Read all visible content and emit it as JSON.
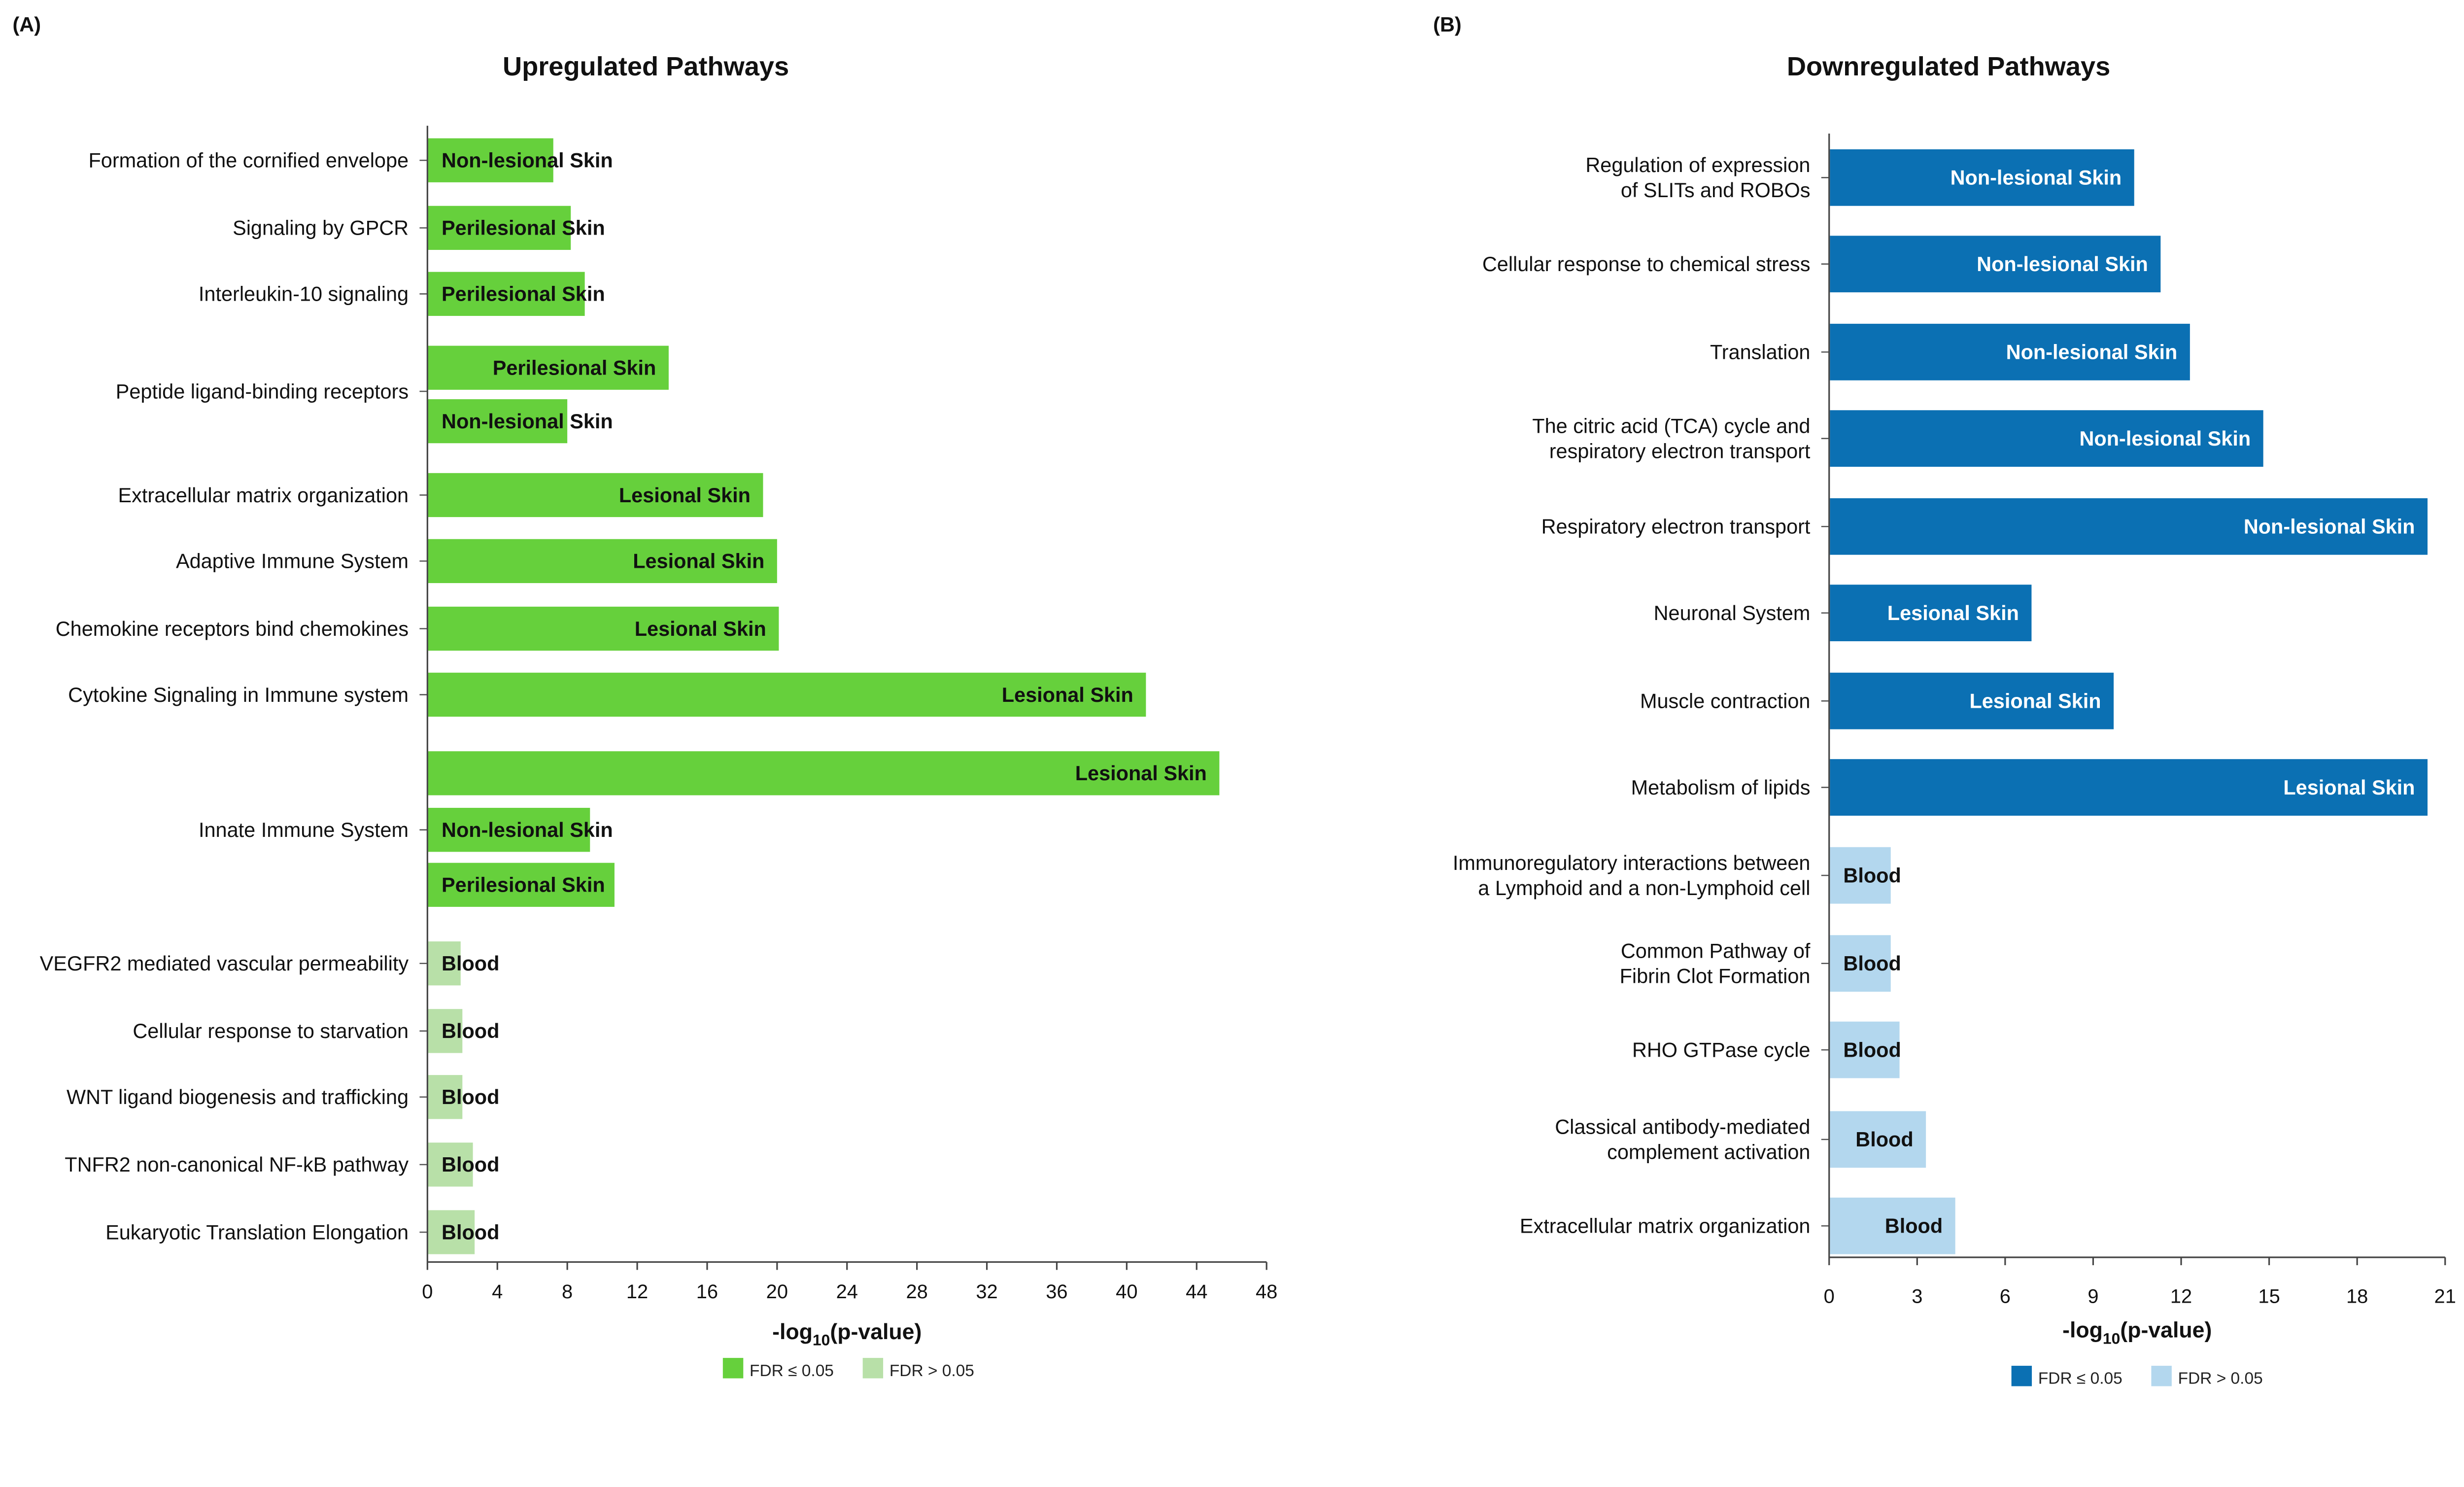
{
  "chart_data": [
    {
      "type": "bar",
      "orientation": "horizontal",
      "panel": "(A)",
      "title": "Upregulated Pathways",
      "xlabel": {
        "main": "-log",
        "sub": "10",
        "rest": "(p-value)"
      },
      "xlim": [
        0,
        48
      ],
      "xticks": [
        0,
        4,
        8,
        12,
        16,
        20,
        24,
        28,
        32,
        36,
        40,
        44,
        48
      ],
      "colors": {
        "significant": "#66d03c",
        "nonsignificant": "#b8e0a8"
      },
      "legend": [
        {
          "label": "FDR ≤ 0.05",
          "key": "significant"
        },
        {
          "label": "FDR > 0.05",
          "key": "nonsignificant"
        }
      ],
      "legend_position": "bottom",
      "groups": [
        {
          "pathway": "Formation of the cornified envelope",
          "bars": [
            {
              "tissue": "Non-lesional Skin",
              "value": 7.2,
              "significant": true
            }
          ]
        },
        {
          "pathway": "Signaling by GPCR",
          "bars": [
            {
              "tissue": "Perilesional Skin",
              "value": 8.2,
              "significant": true
            }
          ]
        },
        {
          "pathway": "Interleukin-10 signaling",
          "bars": [
            {
              "tissue": "Perilesional Skin",
              "value": 9.0,
              "significant": true
            }
          ]
        },
        {
          "pathway": "Peptide ligand-binding receptors",
          "bars": [
            {
              "tissue": "Perilesional Skin",
              "value": 13.8,
              "significant": true
            },
            {
              "tissue": "Non-lesional Skin",
              "value": 8.0,
              "significant": true
            }
          ]
        },
        {
          "pathway": "Extracellular matrix organization",
          "bars": [
            {
              "tissue": "Lesional Skin",
              "value": 19.2,
              "significant": true
            }
          ]
        },
        {
          "pathway": "Adaptive Immune System",
          "bars": [
            {
              "tissue": "Lesional Skin",
              "value": 20.0,
              "significant": true
            }
          ]
        },
        {
          "pathway": "Chemokine receptors bind chemokines",
          "bars": [
            {
              "tissue": "Lesional Skin",
              "value": 20.1,
              "significant": true
            }
          ]
        },
        {
          "pathway": "Cytokine Signaling in Immune system",
          "bars": [
            {
              "tissue": "Lesional Skin",
              "value": 41.1,
              "significant": true
            }
          ]
        },
        {
          "pathway": "Innate Immune System",
          "bars": [
            {
              "tissue": "Lesional Skin",
              "value": 45.3,
              "significant": true
            },
            {
              "tissue": "Non-lesional Skin",
              "value": 9.3,
              "significant": true
            },
            {
              "tissue": "Perilesional Skin",
              "value": 10.7,
              "significant": true
            }
          ]
        },
        {
          "pathway": "VEGFR2 mediated vascular permeability",
          "bars": [
            {
              "tissue": "Blood",
              "value": 1.9,
              "significant": false
            }
          ]
        },
        {
          "pathway": "Cellular response to starvation",
          "bars": [
            {
              "tissue": "Blood",
              "value": 2.0,
              "significant": false
            }
          ]
        },
        {
          "pathway": "WNT ligand biogenesis and trafficking",
          "bars": [
            {
              "tissue": "Blood",
              "value": 2.0,
              "significant": false
            }
          ]
        },
        {
          "pathway": "TNFR2 non-canonical NF-kB pathway",
          "bars": [
            {
              "tissue": "Blood",
              "value": 2.6,
              "significant": false
            }
          ]
        },
        {
          "pathway": "Eukaryotic Translation Elongation",
          "bars": [
            {
              "tissue": "Blood",
              "value": 2.7,
              "significant": false
            }
          ]
        }
      ]
    },
    {
      "type": "bar",
      "orientation": "horizontal",
      "panel": "(B)",
      "title": "Downregulated Pathways",
      "xlabel": {
        "main": "-log",
        "sub": "10",
        "rest": "(p-value)"
      },
      "xlim": [
        0,
        21
      ],
      "xticks": [
        0,
        3,
        6,
        9,
        12,
        15,
        18,
        21
      ],
      "colors": {
        "significant": "#0b70b3",
        "nonsignificant": "#b3d7ee"
      },
      "legend": [
        {
          "label": "FDR ≤ 0.05",
          "key": "significant"
        },
        {
          "label": "FDR > 0.05",
          "key": "nonsignificant"
        }
      ],
      "legend_position": "bottom",
      "groups": [
        {
          "pathway": [
            "Regulation of expression",
            "of SLITs and ROBOs"
          ],
          "bars": [
            {
              "tissue": "Non-lesional Skin",
              "value": 10.4,
              "significant": true
            }
          ]
        },
        {
          "pathway": [
            "Cellular response to chemical stress"
          ],
          "bars": [
            {
              "tissue": "Non-lesional Skin",
              "value": 11.3,
              "significant": true
            }
          ]
        },
        {
          "pathway": [
            "Translation"
          ],
          "bars": [
            {
              "tissue": "Non-lesional Skin",
              "value": 12.3,
              "significant": true
            }
          ]
        },
        {
          "pathway": [
            "The citric acid (TCA) cycle and",
            "respiratory electron transport"
          ],
          "bars": [
            {
              "tissue": "Non-lesional Skin",
              "value": 14.8,
              "significant": true
            }
          ]
        },
        {
          "pathway": [
            "Respiratory electron transport"
          ],
          "bars": [
            {
              "tissue": "Non-lesional Skin",
              "value": 20.4,
              "significant": true
            }
          ]
        },
        {
          "pathway": [
            "Neuronal System"
          ],
          "bars": [
            {
              "tissue": "Lesional Skin",
              "value": 6.9,
              "significant": true
            }
          ]
        },
        {
          "pathway": [
            "Muscle contraction"
          ],
          "bars": [
            {
              "tissue": "Lesional Skin",
              "value": 9.7,
              "significant": true
            }
          ]
        },
        {
          "pathway": [
            "Metabolism of lipids"
          ],
          "bars": [
            {
              "tissue": "Lesional Skin",
              "value": 20.4,
              "significant": true
            }
          ]
        },
        {
          "pathway": [
            "Immunoregulatory interactions between",
            "a Lymphoid and a non-Lymphoid cell"
          ],
          "bars": [
            {
              "tissue": "Blood",
              "value": 2.1,
              "significant": false
            }
          ]
        },
        {
          "pathway": [
            "Common Pathway of",
            "Fibrin Clot Formation"
          ],
          "bars": [
            {
              "tissue": "Blood",
              "value": 2.1,
              "significant": false
            }
          ]
        },
        {
          "pathway": [
            "RHO GTPase cycle"
          ],
          "bars": [
            {
              "tissue": "Blood",
              "value": 2.4,
              "significant": false
            }
          ]
        },
        {
          "pathway": [
            "Classical antibody-mediated",
            "complement activation"
          ],
          "bars": [
            {
              "tissue": "Blood",
              "value": 3.3,
              "significant": false
            }
          ]
        },
        {
          "pathway": [
            "Extracellular matrix organization"
          ],
          "bars": [
            {
              "tissue": "Blood",
              "value": 4.3,
              "significant": false
            }
          ]
        }
      ]
    }
  ]
}
